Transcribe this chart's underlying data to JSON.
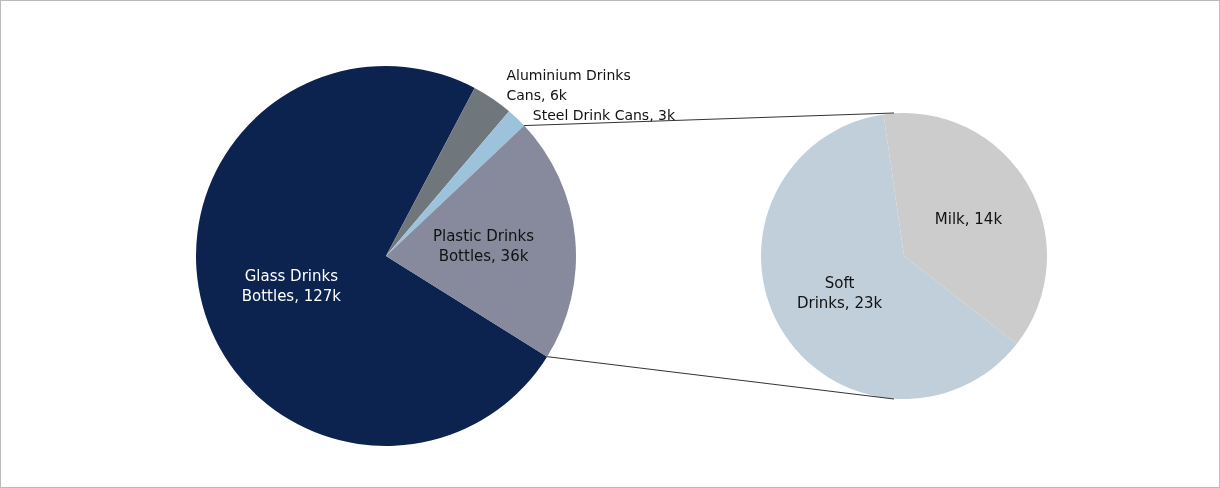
{
  "chart_data": [
    {
      "type": "pie",
      "categories": [
        "Glass Drinks Bottles",
        "Aluminium Drinks Cans",
        "Steel Drink Cans",
        "Plastic Drinks Bottles"
      ],
      "values": [
        127,
        6,
        3,
        36
      ],
      "value_labels": [
        "127k",
        "6k",
        "3k",
        "36k"
      ],
      "colors": [
        "#0c2350",
        "#6f777d",
        "#9dc3dc",
        "#878a9c"
      ]
    },
    {
      "type": "pie",
      "categories": [
        "Soft Drinks",
        "Milk"
      ],
      "values": [
        23,
        14
      ],
      "value_labels": [
        "23k",
        "14k"
      ],
      "colors": [
        "#c0cfd9",
        "#cccccc"
      ]
    }
  ]
}
